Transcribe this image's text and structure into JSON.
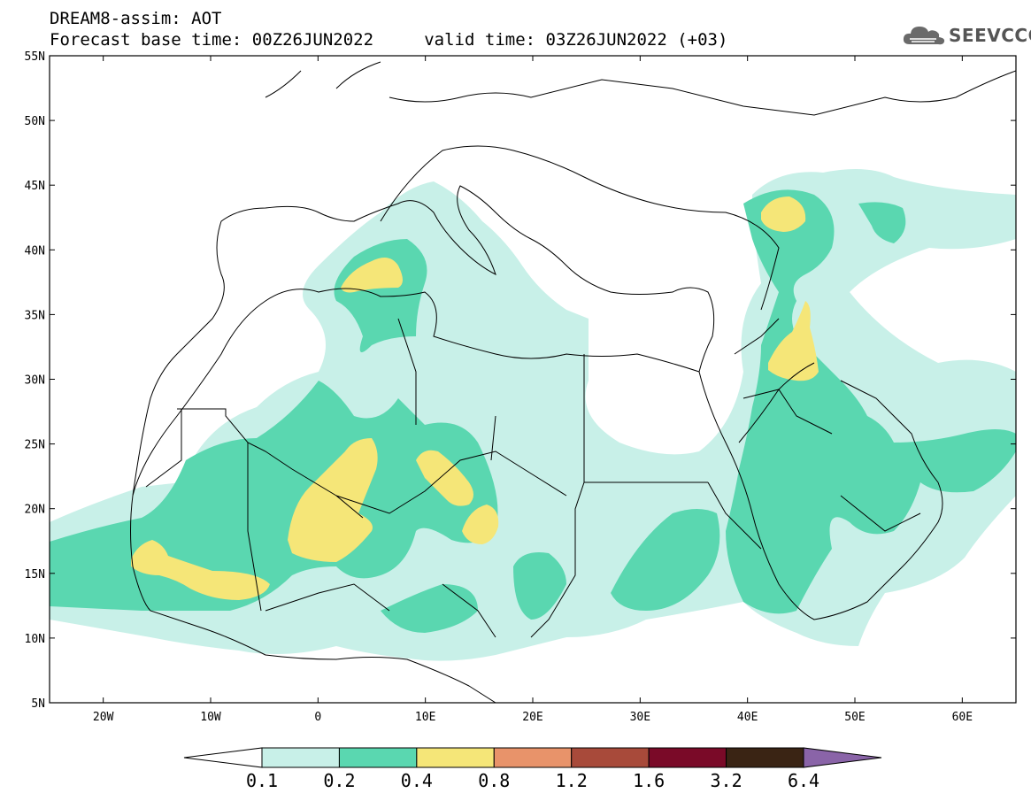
{
  "header": {
    "line1": "DREAM8-assim: AOT",
    "line2": "Forecast base time: 00Z26JUN2022     valid time: 03Z26JUN2022 (+03)"
  },
  "logo": {
    "text": "SEEVCCC",
    "icon": "cloud-icon"
  },
  "map": {
    "extent": {
      "lon": [
        -25,
        65
      ],
      "lat": [
        5,
        55
      ]
    },
    "lat_ticks": [
      "5N",
      "10N",
      "15N",
      "20N",
      "25N",
      "30N",
      "35N",
      "40N",
      "45N",
      "50N",
      "55N"
    ],
    "lon_ticks": [
      "20W",
      "10W",
      "0",
      "10E",
      "20E",
      "30E",
      "40E",
      "50E",
      "60E"
    ]
  },
  "colorbar": {
    "labels": [
      "0.1",
      "0.2",
      "0.4",
      "0.8",
      "1.2",
      "1.6",
      "3.2",
      "6.4"
    ],
    "colors": [
      "#c8f0e8",
      "#5ad7b0",
      "#f5e678",
      "#e8936a",
      "#a84a3a",
      "#7a0a28",
      "#3a2414",
      "#8a64a8"
    ]
  }
}
